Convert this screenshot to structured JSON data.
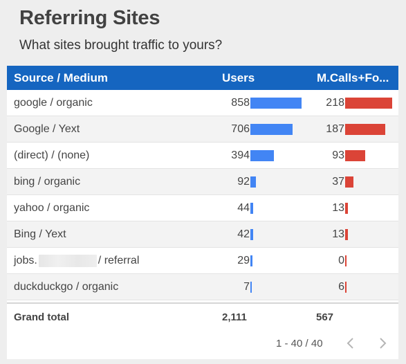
{
  "header": {
    "title": "Referring Sites",
    "subtitle": "What sites brought traffic to yours?"
  },
  "table": {
    "columns": {
      "source": "Source / Medium",
      "users": "Users",
      "calls": "M.Calls+Fo..."
    },
    "rows": [
      {
        "source": "google / organic",
        "users": "858",
        "users_value": 858,
        "calls": "218",
        "calls_value": 218
      },
      {
        "source": "Google / Yext",
        "users": "706",
        "users_value": 706,
        "calls": "187",
        "calls_value": 187
      },
      {
        "source": "(direct) / (none)",
        "users": "394",
        "users_value": 394,
        "calls": "93",
        "calls_value": 93
      },
      {
        "source": "bing / organic",
        "users": "92",
        "users_value": 92,
        "calls": "37",
        "calls_value": 37
      },
      {
        "source": "yahoo / organic",
        "users": "44",
        "users_value": 44,
        "calls": "13",
        "calls_value": 13
      },
      {
        "source": "Bing / Yext",
        "users": "42",
        "users_value": 42,
        "calls": "13",
        "calls_value": 13
      },
      {
        "source_prefix": "jobs.",
        "source_suffix": "/ referral",
        "users": "29",
        "users_value": 29,
        "calls": "0",
        "calls_value": 0
      },
      {
        "source": "duckduckgo / organic",
        "users": "7",
        "users_value": 7,
        "calls": "6",
        "calls_value": 6
      }
    ],
    "grand_total": {
      "label": "Grand total",
      "users": "2,111",
      "calls": "567"
    }
  },
  "pager": {
    "range": "1 - 40 / 40"
  },
  "colors": {
    "header_bg": "#1565c0",
    "users_bar": "#4285f4",
    "calls_bar": "#db4437"
  },
  "icons": {
    "prev": "chevron-left-icon",
    "next": "chevron-right-icon"
  }
}
